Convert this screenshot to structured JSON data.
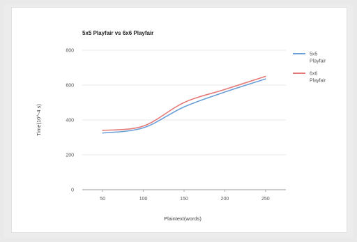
{
  "chart_data": {
    "type": "line",
    "title": "5x5 Playfair vs 6x6 Playfair",
    "xlabel": "Plaintext(words)",
    "ylabel": "Time(10^-4 s)",
    "categories": [
      "50",
      "100",
      "150",
      "200",
      "250"
    ],
    "x": [
      50,
      100,
      150,
      200,
      250
    ],
    "ylim": [
      0,
      800
    ],
    "yticks": [
      "800",
      "600",
      "400",
      "200",
      "0"
    ],
    "ytick_values": [
      800,
      600,
      400,
      200,
      0
    ],
    "grid": true,
    "legend_position": "right",
    "series": [
      {
        "name": "5x5 Playfair",
        "legend_lines": [
          "5x5",
          "Playfair"
        ],
        "color": "#6a9fd8",
        "values": [
          325,
          355,
          475,
          560,
          635
        ]
      },
      {
        "name": "6x6 Playfair",
        "legend_lines": [
          "6x6",
          "Playfair"
        ],
        "color": "#e47a78",
        "values": [
          340,
          365,
          500,
          575,
          650
        ]
      }
    ]
  }
}
